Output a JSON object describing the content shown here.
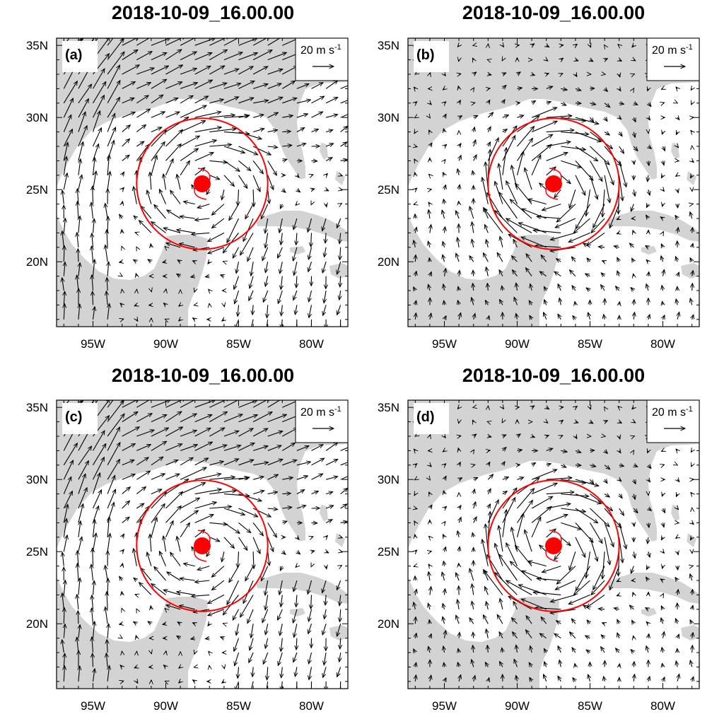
{
  "figure": {
    "panels": [
      {
        "id": "a",
        "label": "(a)",
        "title": "2018-10-09_16.00.00"
      },
      {
        "id": "b",
        "label": "(b)",
        "title": "2018-10-09_16.00.00"
      },
      {
        "id": "c",
        "label": "(c)",
        "title": "2018-10-09_16.00.00"
      },
      {
        "id": "d",
        "label": "(d)",
        "title": "2018-10-09_16.00.00"
      }
    ],
    "lon_ticks": [
      "95W",
      "90W",
      "85W",
      "80W"
    ],
    "lat_ticks": [
      "35N",
      "30N",
      "25N",
      "20N"
    ],
    "reference_vector": {
      "value": "20 m s",
      "superscript": "-1"
    }
  },
  "map": {
    "lon_range": [
      -97.5,
      -77.5
    ],
    "lat_range": [
      15.5,
      35.5
    ],
    "land_color": "#d3d3d3",
    "ocean_color": "#ffffff",
    "storm_center": {
      "lon": -87.5,
      "lat": 25.4
    },
    "storm_marker_color": "#ff0000",
    "analysis_circle_color": "#ff0000",
    "analysis_circle_radius_deg": 4.5,
    "vector_color": "#000000"
  }
}
